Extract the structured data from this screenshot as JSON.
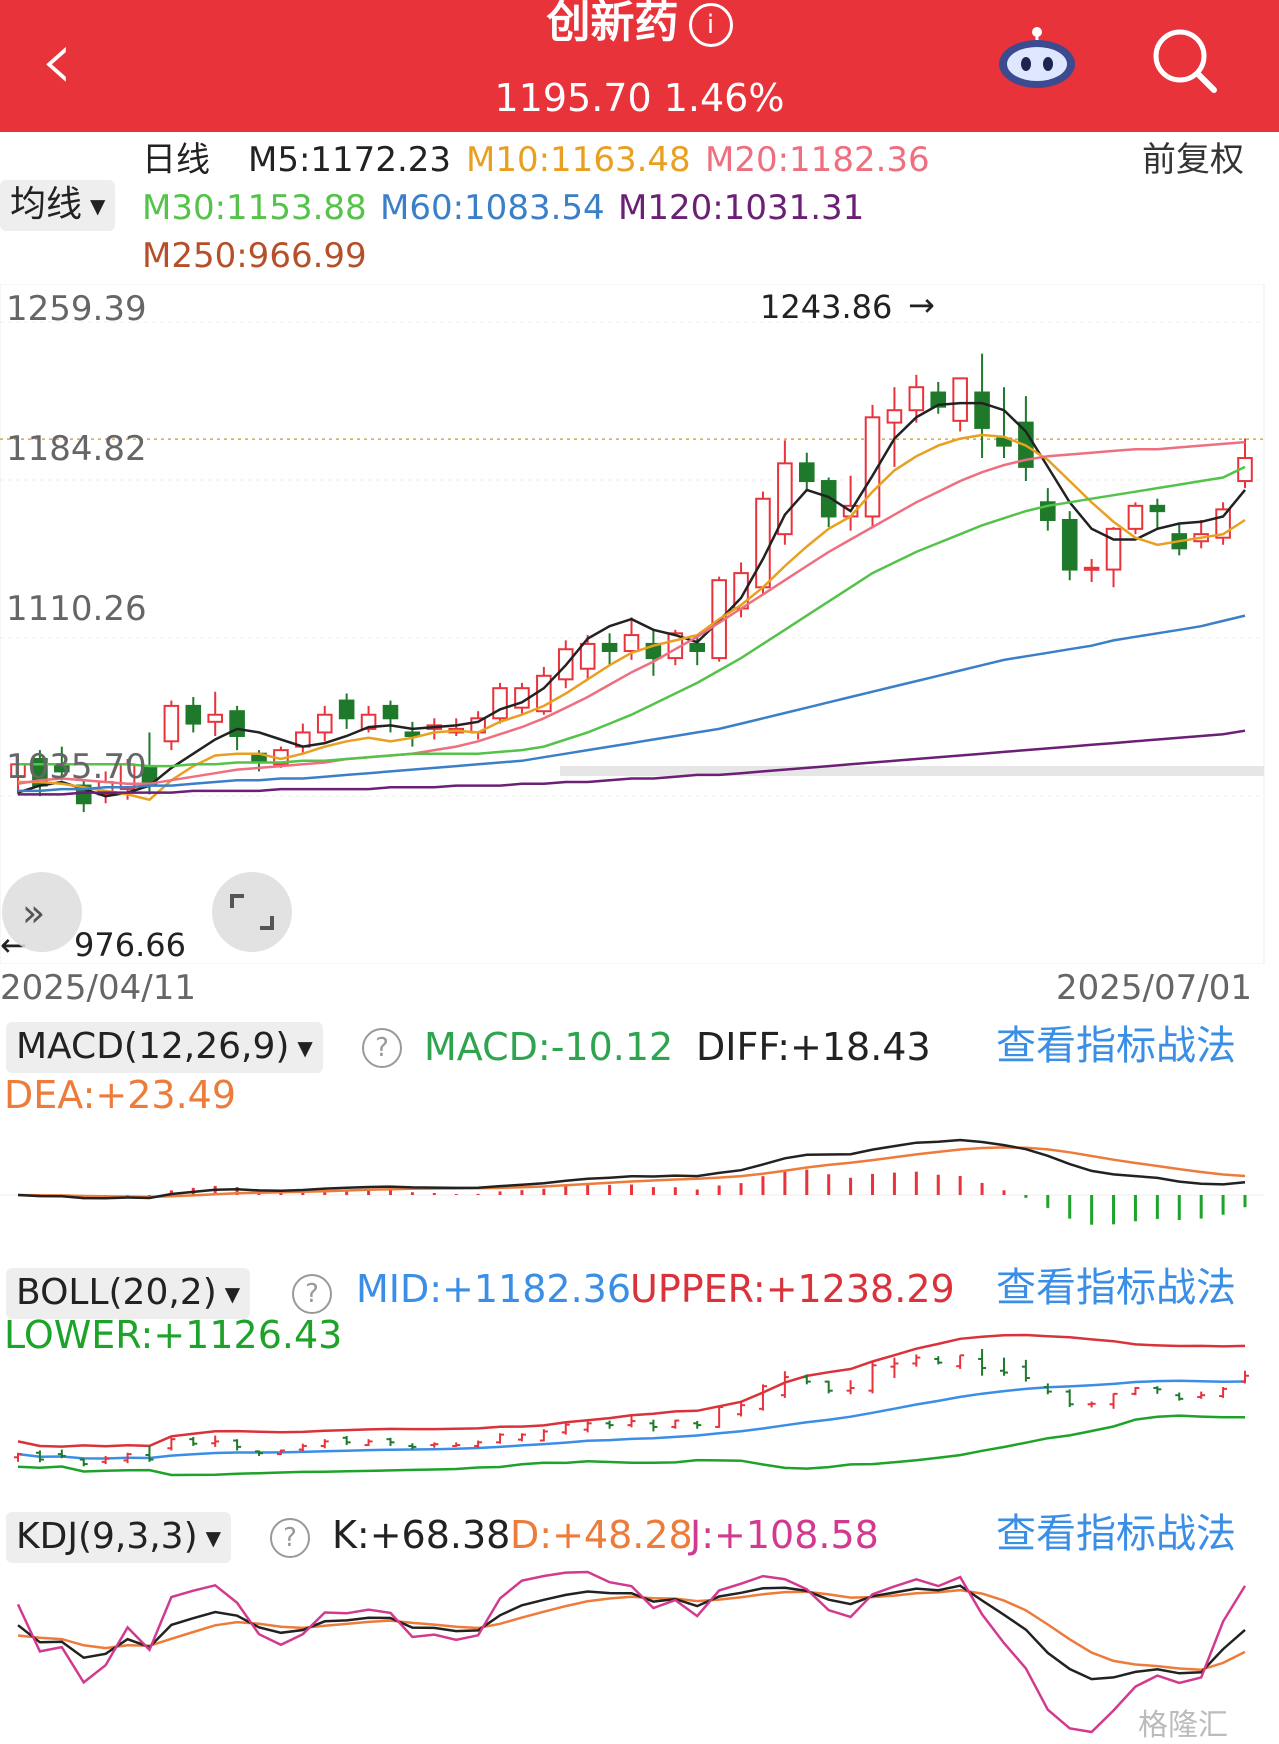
{
  "header": {
    "back_icon": "chevron-left-icon",
    "title": "创新药",
    "info_icon": "i",
    "price": "1195.70",
    "change": "1.46%",
    "robot_icon": "robot-icon",
    "search_icon": "search-icon",
    "bg_color": "#e8333b"
  },
  "ma_legend": {
    "period": "日线",
    "selector": "均线",
    "adjust": "前复权",
    "items": [
      {
        "label": "M5:1172.23",
        "color": "#222222"
      },
      {
        "label": "M10:1163.48",
        "color": "#e8a020"
      },
      {
        "label": "M20:1182.36",
        "color": "#ee6f7f"
      },
      {
        "label": "M30:1153.88",
        "color": "#55c24a"
      },
      {
        "label": "M60:1083.54",
        "color": "#3a7fc8"
      },
      {
        "label": "M120:1031.31",
        "color": "#6b1f75"
      },
      {
        "label": "M250:966.99",
        "color": "#b5502a"
      }
    ]
  },
  "main_chart": {
    "y_labels": [
      "1259.39",
      "1184.82",
      "1110.26",
      "1035.70"
    ],
    "high_label": "1243.86",
    "low_label": "976.66",
    "x_start": "2025/04/11",
    "x_end": "2025/07/01",
    "current_price_line": 1195.7
  },
  "chart_data": {
    "type": "candlestick",
    "ylim": [
      966.99,
      1272.0
    ],
    "candles": [
      [
        1005,
        1012,
        995,
        1015
      ],
      [
        1015,
        1000,
        994,
        1020
      ],
      [
        1012,
        1008,
        1003,
        1022
      ],
      [
        1000,
        990,
        985,
        1003
      ],
      [
        995,
        1002,
        990,
        1008
      ],
      [
        998,
        1012,
        992,
        1015
      ],
      [
        1010,
        1000,
        995,
        1030
      ],
      [
        1025,
        1045,
        1020,
        1048
      ],
      [
        1045,
        1035,
        1030,
        1050
      ],
      [
        1036,
        1040,
        1028,
        1053
      ],
      [
        1042,
        1028,
        1020,
        1045
      ],
      [
        1018,
        1014,
        1008,
        1020
      ],
      [
        1012,
        1020,
        1010,
        1022
      ],
      [
        1022,
        1030,
        1018,
        1035
      ],
      [
        1030,
        1040,
        1025,
        1045
      ],
      [
        1048,
        1038,
        1032,
        1052
      ],
      [
        1032,
        1040,
        1030,
        1045
      ],
      [
        1045,
        1038,
        1030,
        1048
      ],
      [
        1030,
        1028,
        1022,
        1036
      ],
      [
        1032,
        1034,
        1026,
        1038
      ],
      [
        1030,
        1032,
        1028,
        1038
      ],
      [
        1030,
        1038,
        1026,
        1042
      ],
      [
        1038,
        1055,
        1035,
        1058
      ],
      [
        1044,
        1055,
        1040,
        1058
      ],
      [
        1042,
        1062,
        1040,
        1067
      ],
      [
        1060,
        1077,
        1055,
        1082
      ],
      [
        1066,
        1080,
        1060,
        1085
      ],
      [
        1080,
        1076,
        1068,
        1086
      ],
      [
        1076,
        1085,
        1071,
        1095
      ],
      [
        1080,
        1072,
        1062,
        1088
      ],
      [
        1072,
        1086,
        1068,
        1088
      ],
      [
        1080,
        1076,
        1068,
        1085
      ],
      [
        1072,
        1116,
        1070,
        1118
      ],
      [
        1100,
        1120,
        1095,
        1126
      ],
      [
        1112,
        1162,
        1108,
        1166
      ],
      [
        1142,
        1182,
        1136,
        1195
      ],
      [
        1182,
        1172,
        1166,
        1188
      ],
      [
        1172,
        1152,
        1146,
        1174
      ],
      [
        1152,
        1158,
        1144,
        1175
      ],
      [
        1152,
        1208,
        1146,
        1215
      ],
      [
        1205,
        1212,
        1180,
        1225
      ],
      [
        1212,
        1225,
        1205,
        1232
      ],
      [
        1222,
        1214,
        1210,
        1228
      ],
      [
        1206,
        1230,
        1200,
        1230
      ],
      [
        1222,
        1202,
        1185,
        1244
      ],
      [
        1196,
        1192,
        1185,
        1225
      ],
      [
        1205,
        1180,
        1172,
        1220
      ],
      [
        1160,
        1150,
        1144,
        1168
      ],
      [
        1150,
        1122,
        1116,
        1155
      ],
      [
        1122,
        1123,
        1115,
        1128
      ],
      [
        1122,
        1145,
        1112,
        1146
      ],
      [
        1145,
        1158,
        1142,
        1160
      ],
      [
        1158,
        1155,
        1145,
        1162
      ],
      [
        1142,
        1134,
        1130,
        1148
      ],
      [
        1138,
        1142,
        1134,
        1150
      ],
      [
        1140,
        1156,
        1136,
        1160
      ],
      [
        1172,
        1185,
        1168,
        1196
      ]
    ],
    "ma_lines": [
      {
        "name": "M5",
        "color": "#222222",
        "values": [
          996,
          1000,
          1002,
          998,
          994,
          996,
          1000,
          1010,
          1018,
          1026,
          1032,
          1030,
          1026,
          1022,
          1024,
          1028,
          1033,
          1034,
          1032,
          1033,
          1034,
          1036,
          1043,
          1047,
          1055,
          1068,
          1083,
          1090,
          1094,
          1088,
          1085,
          1081,
          1093,
          1106,
          1128,
          1153,
          1167,
          1163,
          1155,
          1175,
          1196,
          1208,
          1215,
          1216,
          1216,
          1212,
          1200,
          1180,
          1160,
          1145,
          1139,
          1139,
          1145,
          1148,
          1149,
          1152,
          1167
        ]
      },
      {
        "name": "M10",
        "color": "#e8a020",
        "values": [
          1002,
          1002,
          1001,
          999,
          997,
          995,
          992,
          1003,
          1011,
          1017,
          1018,
          1018,
          1015,
          1018,
          1022,
          1025,
          1027,
          1025,
          1027,
          1030,
          1031,
          1030,
          1036,
          1040,
          1045,
          1052,
          1060,
          1068,
          1075,
          1079,
          1082,
          1085,
          1094,
          1102,
          1112,
          1124,
          1135,
          1145,
          1152,
          1166,
          1178,
          1186,
          1192,
          1196,
          1198,
          1197,
          1192,
          1184,
          1172,
          1160,
          1149,
          1140,
          1136,
          1138,
          1140,
          1142,
          1150
        ]
      },
      {
        "name": "M20",
        "color": "#ee6f7f",
        "values": [
          1001,
          1003,
          1004,
          1003,
          1002,
          1001,
          1001,
          1003,
          1005,
          1007,
          1009,
          1010,
          1011,
          1012,
          1013,
          1015,
          1016,
          1017,
          1018,
          1020,
          1022,
          1025,
          1029,
          1033,
          1038,
          1044,
          1050,
          1057,
          1064,
          1070,
          1077,
          1084,
          1092,
          1100,
          1108,
          1116,
          1124,
          1132,
          1139,
          1146,
          1153,
          1160,
          1166,
          1172,
          1177,
          1181,
          1184,
          1186,
          1187,
          1188,
          1189,
          1190,
          1190,
          1191,
          1192,
          1193,
          1194
        ]
      },
      {
        "name": "M30",
        "color": "#55c24a",
        "values": [
          1012,
          1012,
          1012,
          1012,
          1012,
          1012,
          1011,
          1011,
          1012,
          1012,
          1013,
          1013,
          1013,
          1014,
          1014,
          1015,
          1016,
          1017,
          1018,
          1018,
          1018,
          1018,
          1019,
          1020,
          1022,
          1026,
          1030,
          1035,
          1040,
          1046,
          1052,
          1058,
          1065,
          1072,
          1080,
          1088,
          1096,
          1104,
          1112,
          1120,
          1126,
          1132,
          1137,
          1142,
          1147,
          1151,
          1155,
          1158,
          1160,
          1162,
          1164,
          1166,
          1168,
          1170,
          1172,
          1174,
          1180
        ]
      },
      {
        "name": "M60",
        "color": "#3a7fc8",
        "values": [
          997,
          997,
          998,
          998,
          999,
          999,
          1000,
          1000,
          1001,
          1002,
          1003,
          1003,
          1004,
          1004,
          1005,
          1006,
          1007,
          1008,
          1009,
          1010,
          1011,
          1012,
          1013,
          1014,
          1016,
          1018,
          1020,
          1022,
          1024,
          1026,
          1028,
          1030,
          1032,
          1035,
          1038,
          1041,
          1044,
          1047,
          1050,
          1053,
          1056,
          1059,
          1062,
          1065,
          1068,
          1071,
          1073,
          1075,
          1077,
          1079,
          1082,
          1084,
          1086,
          1088,
          1090,
          1093,
          1096
        ]
      },
      {
        "name": "M120",
        "color": "#6b1f75",
        "values": [
          995,
          995,
          995,
          996,
          996,
          996,
          996,
          996,
          997,
          997,
          997,
          997,
          998,
          998,
          998,
          998,
          998,
          999,
          999,
          999,
          1000,
          1000,
          1000,
          1001,
          1001,
          1002,
          1002,
          1003,
          1004,
          1004,
          1005,
          1006,
          1006,
          1007,
          1008,
          1009,
          1010,
          1011,
          1012,
          1013,
          1014,
          1015,
          1016,
          1017,
          1018,
          1019,
          1020,
          1021,
          1022,
          1023,
          1024,
          1025,
          1026,
          1027,
          1028,
          1029,
          1031
        ]
      }
    ]
  },
  "macd": {
    "selector": "MACD(12,26,9)",
    "macd": "MACD:-10.12",
    "diff": "DIFF:+18.43",
    "dea": "DEA:+23.49",
    "link": "查看指标战法"
  },
  "boll": {
    "selector": "BOLL(20,2)",
    "mid": "MID:+1182.36",
    "upper": "UPPER:+1238.29",
    "lower": "LOWER:+1126.43",
    "link": "查看指标战法"
  },
  "kdj": {
    "selector": "KDJ(9,3,3)",
    "k": "K:+68.38",
    "d": "D:+48.28",
    "j": "J:+108.58",
    "link": "查看指标战法"
  },
  "watermark": "格隆汇"
}
